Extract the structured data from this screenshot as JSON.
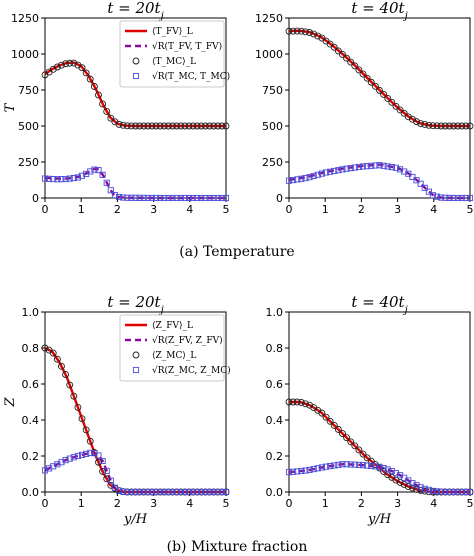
{
  "captions": {
    "top": "(a) Temperature",
    "bottom": "(b) Mixture fraction"
  },
  "colors": {
    "fv_mean": "#e00000",
    "fv_rms": "#8a0a9a",
    "mc_mean": "#222222",
    "mc_rms": "#4a4ad8"
  },
  "chart_data": [
    {
      "type": "line",
      "title": "t = 20t_j",
      "xlabel": "",
      "ylabel": "T",
      "xlim": [
        0,
        5
      ],
      "ylim": [
        0,
        1250
      ],
      "xticks": [
        "0",
        "1",
        "2",
        "3",
        "4",
        "5"
      ],
      "yticks": [
        "0",
        "250",
        "500",
        "750",
        "1000",
        "1250"
      ],
      "legend": {
        "position": "top-right",
        "entries": [
          "⟨T_FV⟩_L",
          "√R(T_FV, T_FV)",
          "⟨T_MC⟩_L",
          "√R(T_MC, T_MC)"
        ]
      },
      "series": [
        {
          "name": "⟨T_FV⟩_L",
          "style": "line",
          "x": [
            0,
            0.2,
            0.4,
            0.6,
            0.8,
            1.0,
            1.2,
            1.4,
            1.6,
            1.8,
            2.0,
            2.2,
            2.5,
            3.0,
            4.0,
            5.0
          ],
          "y": [
            860,
            895,
            920,
            938,
            940,
            915,
            850,
            760,
            650,
            560,
            515,
            503,
            500,
            500,
            500,
            500
          ]
        },
        {
          "name": "√R(T_FV, T_FV)",
          "style": "dash",
          "x": [
            0,
            0.3,
            0.6,
            0.9,
            1.1,
            1.3,
            1.4,
            1.5,
            1.6,
            1.7,
            1.8,
            1.9,
            2.0,
            2.2,
            3.0,
            5.0
          ],
          "y": [
            140,
            135,
            135,
            145,
            165,
            195,
            205,
            195,
            160,
            110,
            60,
            25,
            8,
            2,
            0,
            0
          ]
        },
        {
          "name": "⟨T_MC⟩_L",
          "style": "circle",
          "x": [
            0,
            0.2,
            0.4,
            0.6,
            0.8,
            1.0,
            1.2,
            1.4,
            1.6,
            1.8,
            2.0,
            2.2,
            2.5,
            3.0,
            4.0,
            5.0
          ],
          "y": [
            855,
            890,
            918,
            935,
            937,
            912,
            848,
            758,
            648,
            558,
            514,
            502,
            500,
            500,
            500,
            500
          ]
        },
        {
          "name": "√R(T_MC, T_MC)",
          "style": "square",
          "x": [
            0,
            0.3,
            0.6,
            0.9,
            1.1,
            1.3,
            1.4,
            1.5,
            1.6,
            1.7,
            1.8,
            1.9,
            2.0,
            2.2,
            3.0,
            5.0
          ],
          "y": [
            135,
            130,
            132,
            142,
            162,
            192,
            200,
            192,
            158,
            108,
            60,
            25,
            8,
            2,
            0,
            0
          ]
        }
      ]
    },
    {
      "type": "line",
      "title": "t = 40t_j",
      "xlabel": "",
      "ylabel": "",
      "xlim": [
        0,
        5
      ],
      "ylim": [
        0,
        1250
      ],
      "xticks": [
        "0",
        "1",
        "2",
        "3",
        "4",
        "5"
      ],
      "yticks": [
        "0",
        "250",
        "500",
        "750",
        "1000",
        "1250"
      ],
      "series": [
        {
          "name": "⟨T_FV⟩_L",
          "style": "line",
          "x": [
            0,
            0.3,
            0.6,
            0.9,
            1.2,
            1.5,
            1.8,
            2.1,
            2.4,
            2.7,
            3.0,
            3.3,
            3.6,
            3.9,
            4.2,
            4.5,
            5.0
          ],
          "y": [
            1160,
            1162,
            1150,
            1115,
            1060,
            995,
            925,
            850,
            775,
            700,
            628,
            565,
            520,
            503,
            500,
            500,
            500
          ]
        },
        {
          "name": "√R(T_FV, T_FV)",
          "style": "dash",
          "x": [
            0,
            0.5,
            1.0,
            1.5,
            2.0,
            2.5,
            3.0,
            3.3,
            3.6,
            3.8,
            4.0,
            4.2,
            4.5,
            5.0
          ],
          "y": [
            125,
            145,
            180,
            205,
            222,
            232,
            210,
            170,
            110,
            60,
            15,
            3,
            0,
            0
          ]
        },
        {
          "name": "⟨T_MC⟩_L",
          "style": "circle",
          "x": [
            0,
            0.3,
            0.6,
            0.9,
            1.2,
            1.5,
            1.8,
            2.1,
            2.4,
            2.7,
            3.0,
            3.3,
            3.6,
            3.9,
            4.2,
            4.5,
            5.0
          ],
          "y": [
            1158,
            1160,
            1148,
            1112,
            1057,
            992,
            922,
            847,
            772,
            698,
            626,
            563,
            519,
            503,
            500,
            500,
            500
          ]
        },
        {
          "name": "√R(T_MC, T_MC)",
          "style": "square",
          "x": [
            0,
            0.5,
            1.0,
            1.5,
            2.0,
            2.5,
            3.0,
            3.3,
            3.6,
            3.8,
            4.0,
            4.2,
            4.5,
            5.0
          ],
          "y": [
            120,
            140,
            176,
            200,
            218,
            228,
            208,
            168,
            108,
            58,
            14,
            3,
            0,
            0
          ]
        }
      ]
    },
    {
      "type": "line",
      "title": "t = 20t_j",
      "xlabel": "y/H",
      "ylabel": "Z",
      "xlim": [
        0,
        5
      ],
      "ylim": [
        0,
        1.0
      ],
      "xticks": [
        "0",
        "1",
        "2",
        "3",
        "4",
        "5"
      ],
      "yticks": [
        "0.0",
        "0.2",
        "0.4",
        "0.6",
        "0.8",
        "1.0"
      ],
      "legend": {
        "position": "top-right",
        "entries": [
          "⟨Z_FV⟩_L",
          "√R(Z_FV, Z_FV)",
          "⟨Z_MC⟩_L",
          "√R(Z_MC, Z_MC)"
        ]
      },
      "series": [
        {
          "name": "⟨Z_FV⟩_L",
          "style": "line",
          "x": [
            0,
            0.2,
            0.4,
            0.6,
            0.8,
            1.0,
            1.2,
            1.4,
            1.6,
            1.8,
            2.0,
            2.2,
            2.5,
            3.0,
            5.0
          ],
          "y": [
            0.8,
            0.78,
            0.72,
            0.64,
            0.53,
            0.42,
            0.31,
            0.2,
            0.11,
            0.04,
            0.01,
            0.0,
            0.0,
            0.0,
            0.0
          ]
        },
        {
          "name": "√R(Z_FV, Z_FV)",
          "style": "dash",
          "x": [
            0,
            0.3,
            0.6,
            0.9,
            1.1,
            1.3,
            1.45,
            1.6,
            1.7,
            1.8,
            1.9,
            2.0,
            2.2,
            3.0,
            5.0
          ],
          "y": [
            0.12,
            0.15,
            0.18,
            0.2,
            0.21,
            0.22,
            0.21,
            0.17,
            0.12,
            0.07,
            0.03,
            0.01,
            0.0,
            0.0,
            0.0
          ]
        },
        {
          "name": "⟨Z_MC⟩_L",
          "style": "circle",
          "x": [
            0,
            0.2,
            0.4,
            0.6,
            0.8,
            1.0,
            1.2,
            1.4,
            1.6,
            1.8,
            2.0,
            2.2,
            2.5,
            3.0,
            5.0
          ],
          "y": [
            0.8,
            0.78,
            0.72,
            0.64,
            0.53,
            0.42,
            0.31,
            0.2,
            0.11,
            0.04,
            0.01,
            0.0,
            0.0,
            0.0,
            0.0
          ]
        },
        {
          "name": "√R(Z_MC, Z_MC)",
          "style": "square",
          "x": [
            0,
            0.3,
            0.6,
            0.9,
            1.1,
            1.3,
            1.45,
            1.6,
            1.7,
            1.8,
            1.9,
            2.0,
            2.2,
            3.0,
            5.0
          ],
          "y": [
            0.12,
            0.15,
            0.18,
            0.2,
            0.21,
            0.22,
            0.21,
            0.17,
            0.12,
            0.07,
            0.03,
            0.01,
            0.0,
            0.0,
            0.0
          ]
        }
      ]
    },
    {
      "type": "line",
      "title": "t = 40t_j",
      "xlabel": "y/H",
      "ylabel": "",
      "xlim": [
        0,
        5
      ],
      "ylim": [
        0,
        1.0
      ],
      "xticks": [
        "0",
        "1",
        "2",
        "3",
        "4",
        "5"
      ],
      "yticks": [
        "0.0",
        "0.2",
        "0.4",
        "0.6",
        "0.8",
        "1.0"
      ],
      "series": [
        {
          "name": "⟨Z_FV⟩_L",
          "style": "line",
          "x": [
            0,
            0.3,
            0.6,
            0.9,
            1.2,
            1.5,
            1.8,
            2.1,
            2.4,
            2.7,
            3.0,
            3.3,
            3.6,
            3.9,
            4.2,
            5.0
          ],
          "y": [
            0.5,
            0.5,
            0.48,
            0.44,
            0.38,
            0.32,
            0.26,
            0.2,
            0.15,
            0.1,
            0.06,
            0.03,
            0.01,
            0.0,
            0.0,
            0.0
          ]
        },
        {
          "name": "√R(Z_FV, Z_FV)",
          "style": "dash",
          "x": [
            0,
            0.5,
            1.0,
            1.5,
            2.0,
            2.5,
            2.8,
            3.1,
            3.4,
            3.7,
            4.0,
            4.3,
            5.0
          ],
          "y": [
            0.11,
            0.12,
            0.14,
            0.155,
            0.15,
            0.14,
            0.12,
            0.09,
            0.05,
            0.02,
            0.005,
            0.0,
            0.0
          ]
        },
        {
          "name": "⟨Z_MC⟩_L",
          "style": "circle",
          "x": [
            0,
            0.3,
            0.6,
            0.9,
            1.2,
            1.5,
            1.8,
            2.1,
            2.4,
            2.7,
            3.0,
            3.3,
            3.6,
            3.9,
            4.2,
            5.0
          ],
          "y": [
            0.5,
            0.5,
            0.48,
            0.44,
            0.38,
            0.32,
            0.26,
            0.2,
            0.15,
            0.1,
            0.06,
            0.03,
            0.01,
            0.0,
            0.0,
            0.0
          ]
        },
        {
          "name": "√R(Z_MC, Z_MC)",
          "style": "square",
          "x": [
            0,
            0.5,
            1.0,
            1.5,
            2.0,
            2.5,
            2.8,
            3.1,
            3.4,
            3.7,
            4.0,
            4.3,
            5.0
          ],
          "y": [
            0.11,
            0.12,
            0.14,
            0.155,
            0.15,
            0.14,
            0.12,
            0.09,
            0.05,
            0.02,
            0.005,
            0.0,
            0.0
          ]
        }
      ]
    }
  ]
}
